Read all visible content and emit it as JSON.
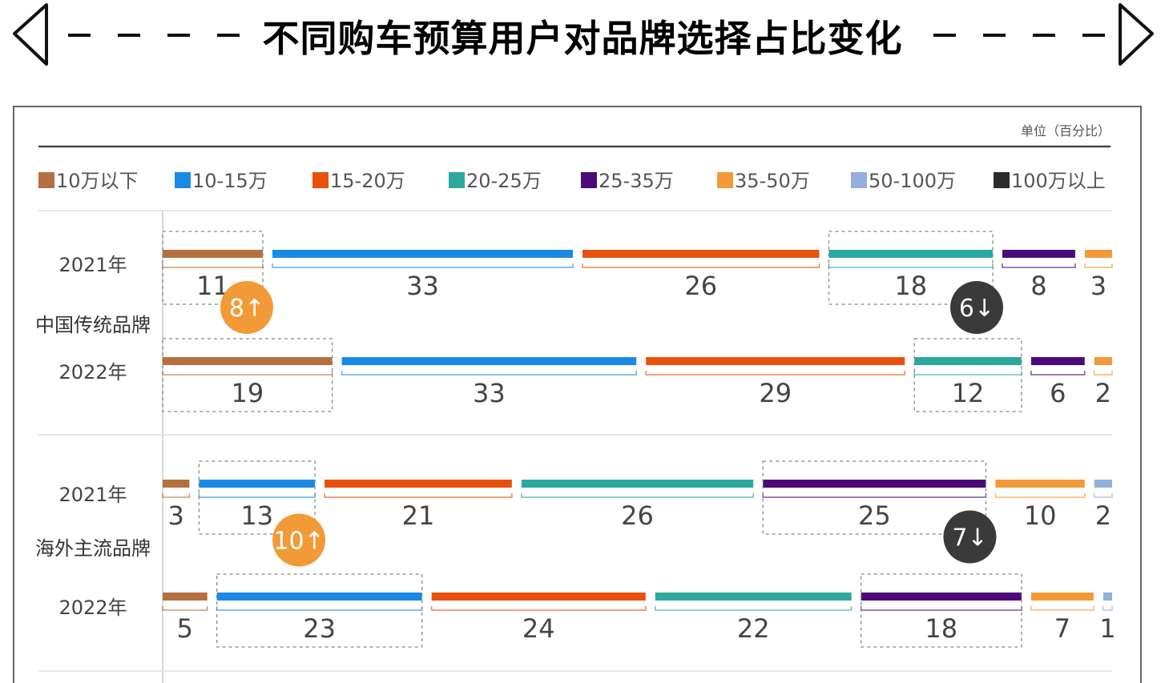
{
  "title": "不同购车预算用户对品牌选择占比变化",
  "chart_data": {
    "type": "bar",
    "subtype": "stacked-horizontal-100",
    "title": "不同购车预算用户对品牌选择占比变化",
    "unit_label": "单位（百分比）",
    "legend": [
      "10万以下",
      "10-15万",
      "15-20万",
      "20-25万",
      "25-35万",
      "35-50万",
      "50-100万",
      "100万以上"
    ],
    "colors": [
      "#B5703F",
      "#1B8AE6",
      "#E8500E",
      "#2BA99E",
      "#4B0A78",
      "#F29A38",
      "#92B0DA",
      "#2B2B2B"
    ],
    "groups": [
      {
        "name": "中国传统品牌",
        "rows": [
          {
            "year": "2021年",
            "values": [
              11,
              33,
              26,
              18,
              8,
              3
            ]
          },
          {
            "year": "2022年",
            "values": [
              19,
              33,
              29,
              12,
              6,
              2
            ]
          }
        ],
        "highlights": [
          {
            "series": 0,
            "change": "8↑",
            "direction": "up"
          },
          {
            "series": 3,
            "change": "6↓",
            "direction": "down"
          }
        ]
      },
      {
        "name": "海外主流品牌",
        "rows": [
          {
            "year": "2021年",
            "values": [
              3,
              13,
              21,
              26,
              25,
              10,
              2
            ]
          },
          {
            "year": "2022年",
            "values": [
              5,
              23,
              24,
              22,
              18,
              7,
              1
            ]
          }
        ],
        "highlights": [
          {
            "series": 1,
            "change": "10↑",
            "direction": "up"
          },
          {
            "series": 4,
            "change": "7↓",
            "direction": "down"
          }
        ]
      }
    ],
    "badge_colors": {
      "up": "#F29A38",
      "down": "#3A3A3A"
    }
  }
}
